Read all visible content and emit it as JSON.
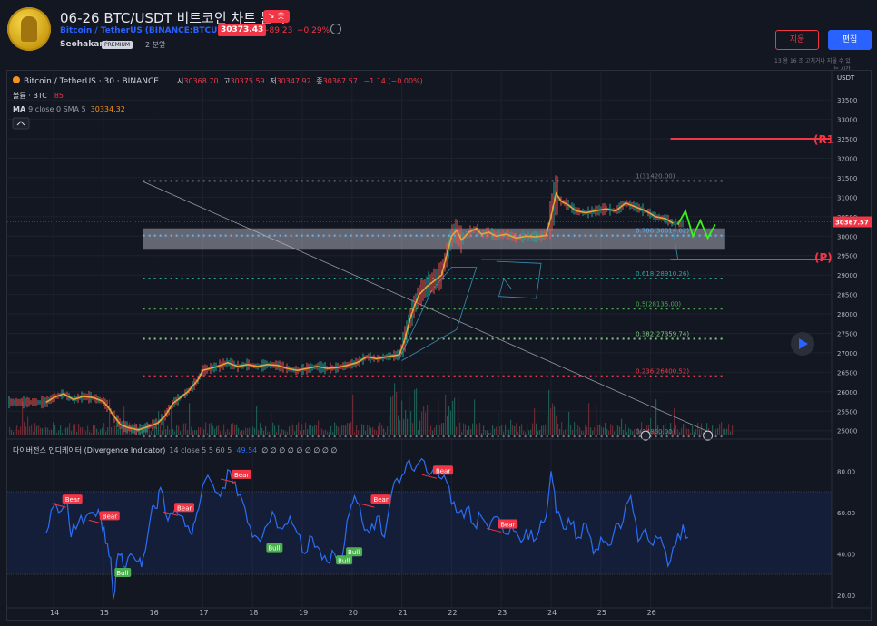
{
  "header": {
    "title": "06-26 BTC/USDT 비트코인 차트 분석",
    "direction_badge": "↘ 숏",
    "symbol_name": "Bitcoin / TetherUS",
    "symbol_code": "(BINANCE:BTCUSDT)",
    "price": "30373.43",
    "change": "−89.23",
    "change_pct": "−0.29%",
    "author": "Seohakant",
    "premium_label": "PREMIUM",
    "time_ago": "2 분앞",
    "delete_button": "지운",
    "edit_button": "편집",
    "edit_note": "13 용 16 조 고치거나 지울 수 있",
    "edit_note2": "는 시간"
  },
  "legend": {
    "symbol_line": "Bitcoin / TetherUS · 30 · BINANCE",
    "o_label": "시",
    "o": "30368.70",
    "h_label": "고",
    "h": "30375.59",
    "l_label": "저",
    "l": "30347.92",
    "c_label": "종",
    "c": "30367.57",
    "delta": "−1.14 (−0.00%)",
    "volume_label": "볼륨 · BTC",
    "volume_value": "85",
    "ma_label": "MA",
    "ma_params": "9 close 0 SMA 5",
    "ma_value": "30334.32",
    "collapse_icon": "chevron-up-icon"
  },
  "indicator": {
    "name": "다이버전스 인디케이터 (Divergence Indicator)",
    "params": "14 close 5 5 60 5",
    "value": "49.54",
    "na_values": "∅ ∅ ∅ ∅ ∅ ∅ ∅ ∅ ∅",
    "bear_label": "Bear",
    "bull_label": "Bull"
  },
  "colors": {
    "background": "#131722",
    "price_line": "#e8a33a",
    "osc_line": "#2a6ef5",
    "bear": "#f23645",
    "bull": "#4caf50",
    "fib_786": "#64b5f6",
    "fib_618": "#26a69a",
    "fib_5": "#4caf50",
    "fib_382": "#81c784",
    "fib_236": "#f23645",
    "fib_1": "#787b86",
    "resistance": "#f23645",
    "forecast": "#3cf01e"
  },
  "chart_data": {
    "type": "line",
    "price_axis": {
      "label": "USDT",
      "ticks": [
        33500,
        33000,
        32500,
        32000,
        31500,
        31000,
        30500,
        30000,
        29500,
        29000,
        28500,
        28000,
        27500,
        27000,
        26500,
        26000,
        25500,
        25000
      ],
      "ylim": [
        24900,
        33900
      ]
    },
    "x_axis": {
      "ticks": [
        "14",
        "15",
        "16",
        "17",
        "18",
        "19",
        "20",
        "21",
        "22",
        "23",
        "24",
        "25",
        "26"
      ]
    },
    "last_price_label": "30367.57",
    "fib_levels": [
      {
        "label": "1(31420.00)",
        "value": 31420
      },
      {
        "label": "0.786(30014.02)",
        "value": 30014.02
      },
      {
        "label": "0.618(28910.26)",
        "value": 28910.26
      },
      {
        "label": "0.5(28135.00)",
        "value": 28135
      },
      {
        "label": "0.382(27359.74)",
        "value": 27359.74
      },
      {
        "label": "0.236(26400.52)",
        "value": 26400.52
      },
      {
        "label": "0(24850.00)",
        "value": 24850
      }
    ],
    "zones": {
      "r1_label": "(R1",
      "r1_value": 32500,
      "p_label": "(P)",
      "p_value": 29400
    },
    "price_series": [
      [
        13.85,
        25730
      ],
      [
        14.0,
        25850
      ],
      [
        14.2,
        25950
      ],
      [
        14.4,
        25800
      ],
      [
        14.6,
        25880
      ],
      [
        14.8,
        25850
      ],
      [
        15.0,
        25750
      ],
      [
        15.1,
        25600
      ],
      [
        15.2,
        25400
      ],
      [
        15.35,
        25150
      ],
      [
        15.5,
        25080
      ],
      [
        15.7,
        25020
      ],
      [
        15.9,
        25100
      ],
      [
        16.1,
        25200
      ],
      [
        16.25,
        25400
      ],
      [
        16.4,
        25700
      ],
      [
        16.55,
        25850
      ],
      [
        16.7,
        26000
      ],
      [
        16.8,
        26150
      ],
      [
        16.9,
        26300
      ],
      [
        17.0,
        26550
      ],
      [
        17.15,
        26600
      ],
      [
        17.3,
        26650
      ],
      [
        17.5,
        26750
      ],
      [
        17.7,
        26650
      ],
      [
        17.9,
        26700
      ],
      [
        18.1,
        26650
      ],
      [
        18.3,
        26700
      ],
      [
        18.5,
        26680
      ],
      [
        18.7,
        26600
      ],
      [
        18.9,
        26550
      ],
      [
        19.1,
        26600
      ],
      [
        19.3,
        26650
      ],
      [
        19.5,
        26600
      ],
      [
        19.7,
        26620
      ],
      [
        19.9,
        26680
      ],
      [
        20.1,
        26750
      ],
      [
        20.3,
        26900
      ],
      [
        20.5,
        26850
      ],
      [
        20.7,
        26900
      ],
      [
        20.95,
        26950
      ],
      [
        21.05,
        27300
      ],
      [
        21.15,
        27800
      ],
      [
        21.25,
        28200
      ],
      [
        21.35,
        28500
      ],
      [
        21.5,
        28700
      ],
      [
        21.65,
        28850
      ],
      [
        21.8,
        29000
      ],
      [
        21.9,
        29500
      ],
      [
        22.0,
        30000
      ],
      [
        22.1,
        30150
      ],
      [
        22.2,
        29900
      ],
      [
        22.35,
        30100
      ],
      [
        22.5,
        30200
      ],
      [
        22.6,
        30050
      ],
      [
        22.75,
        30100
      ],
      [
        22.9,
        30000
      ],
      [
        23.1,
        30050
      ],
      [
        23.3,
        29950
      ],
      [
        23.5,
        30000
      ],
      [
        23.7,
        29980
      ],
      [
        23.9,
        30020
      ],
      [
        24.0,
        30500
      ],
      [
        24.1,
        31100
      ],
      [
        24.2,
        30900
      ],
      [
        24.35,
        30800
      ],
      [
        24.5,
        30650
      ],
      [
        24.7,
        30600
      ],
      [
        24.9,
        30650
      ],
      [
        25.1,
        30700
      ],
      [
        25.3,
        30650
      ],
      [
        25.5,
        30850
      ],
      [
        25.7,
        30750
      ],
      [
        25.9,
        30650
      ],
      [
        26.1,
        30500
      ],
      [
        26.3,
        30450
      ],
      [
        26.45,
        30330
      ]
    ],
    "forecast_path": [
      [
        26.55,
        30300
      ],
      [
        26.7,
        30650
      ],
      [
        26.85,
        30000
      ],
      [
        27.0,
        30400
      ],
      [
        27.15,
        29950
      ],
      [
        27.3,
        30300
      ]
    ],
    "oscillator": {
      "ylim": [
        12,
        92
      ],
      "ticks": [
        80,
        60,
        40,
        20
      ],
      "band": [
        70,
        30
      ],
      "series": [
        [
          13.85,
          50
        ],
        [
          14.0,
          63
        ],
        [
          14.1,
          60
        ],
        [
          14.25,
          66
        ],
        [
          14.35,
          48
        ],
        [
          14.5,
          55
        ],
        [
          14.65,
          58
        ],
        [
          14.8,
          60
        ],
        [
          14.95,
          57
        ],
        [
          15.05,
          45
        ],
        [
          15.15,
          38
        ],
        [
          15.2,
          18
        ],
        [
          15.3,
          40
        ],
        [
          15.4,
          34
        ],
        [
          15.55,
          40
        ],
        [
          15.7,
          36
        ],
        [
          15.8,
          38
        ],
        [
          15.95,
          58
        ],
        [
          16.05,
          62
        ],
        [
          16.15,
          72
        ],
        [
          16.3,
          56
        ],
        [
          16.45,
          62
        ],
        [
          16.6,
          58
        ],
        [
          16.75,
          50
        ],
        [
          16.85,
          56
        ],
        [
          16.95,
          66
        ],
        [
          17.1,
          78
        ],
        [
          17.25,
          70
        ],
        [
          17.4,
          72
        ],
        [
          17.55,
          80
        ],
        [
          17.7,
          68
        ],
        [
          17.85,
          62
        ],
        [
          18.0,
          48
        ],
        [
          18.15,
          46
        ],
        [
          18.3,
          54
        ],
        [
          18.45,
          58
        ],
        [
          18.6,
          52
        ],
        [
          18.75,
          58
        ],
        [
          18.9,
          50
        ],
        [
          19.05,
          40
        ],
        [
          19.2,
          48
        ],
        [
          19.35,
          42
        ],
        [
          19.5,
          36
        ],
        [
          19.65,
          40
        ],
        [
          19.8,
          38
        ],
        [
          19.95,
          60
        ],
        [
          20.05,
          68
        ],
        [
          20.2,
          56
        ],
        [
          20.35,
          50
        ],
        [
          20.5,
          58
        ],
        [
          20.65,
          48
        ],
        [
          20.8,
          70
        ],
        [
          20.95,
          74
        ],
        [
          21.1,
          84
        ],
        [
          21.25,
          80
        ],
        [
          21.4,
          86
        ],
        [
          21.55,
          78
        ],
        [
          21.7,
          82
        ],
        [
          21.85,
          78
        ],
        [
          22.0,
          64
        ],
        [
          22.15,
          60
        ],
        [
          22.3,
          62
        ],
        [
          22.45,
          54
        ],
        [
          22.6,
          58
        ],
        [
          22.75,
          52
        ],
        [
          22.9,
          58
        ],
        [
          23.05,
          50
        ],
        [
          23.2,
          54
        ],
        [
          23.35,
          48
        ],
        [
          23.5,
          52
        ],
        [
          23.65,
          46
        ],
        [
          23.8,
          56
        ],
        [
          23.9,
          58
        ],
        [
          24.0,
          80
        ],
        [
          24.1,
          60
        ],
        [
          24.25,
          52
        ],
        [
          24.4,
          54
        ],
        [
          24.55,
          48
        ],
        [
          24.7,
          55
        ],
        [
          24.85,
          40
        ],
        [
          25.0,
          48
        ],
        [
          25.15,
          44
        ],
        [
          25.3,
          54
        ],
        [
          25.45,
          56
        ],
        [
          25.6,
          68
        ],
        [
          25.75,
          46
        ],
        [
          25.9,
          52
        ],
        [
          26.05,
          44
        ],
        [
          26.2,
          48
        ],
        [
          26.35,
          34
        ],
        [
          26.5,
          44
        ],
        [
          26.65,
          54
        ],
        [
          26.75,
          48
        ]
      ],
      "bear_points": [
        [
          14.25,
          66
        ],
        [
          15.0,
          58
        ],
        [
          16.5,
          62
        ],
        [
          17.65,
          78
        ],
        [
          20.45,
          66
        ],
        [
          21.7,
          80
        ],
        [
          23.0,
          54
        ]
      ],
      "bull_points": [
        [
          15.3,
          34
        ],
        [
          18.35,
          46
        ],
        [
          19.75,
          40
        ],
        [
          19.95,
          44
        ]
      ]
    }
  }
}
